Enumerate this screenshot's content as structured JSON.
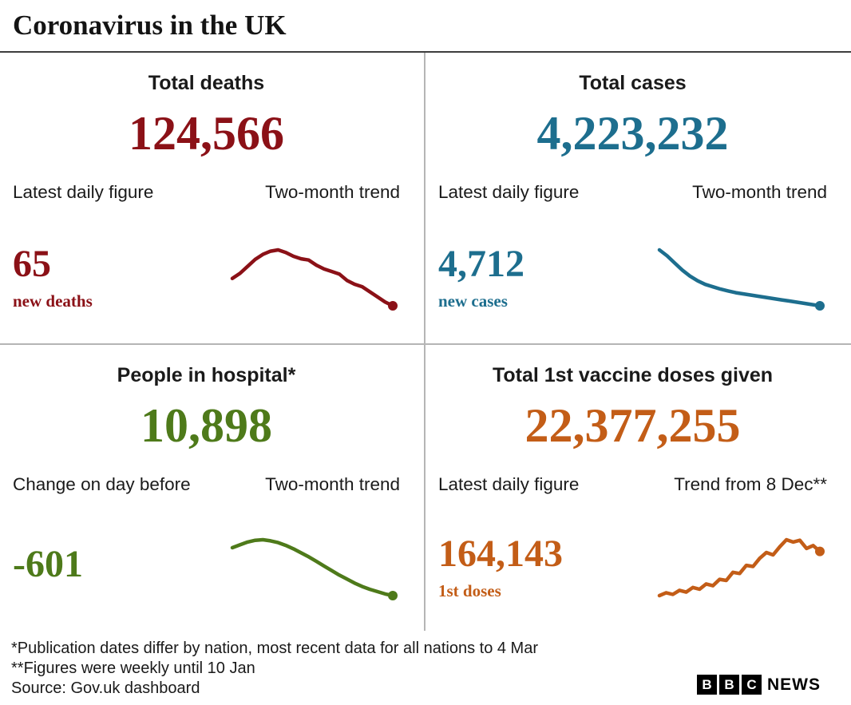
{
  "header": {
    "title": "Coronavirus in the UK"
  },
  "panels": [
    {
      "id": "deaths",
      "heading": "Total deaths",
      "big_number": "124,566",
      "left_label": "Latest daily figure",
      "right_label": "Two-month trend",
      "sub_number": "65",
      "sub_caption": "new deaths",
      "color": "#8b1117"
    },
    {
      "id": "cases",
      "heading": "Total cases",
      "big_number": "4,223,232",
      "left_label": "Latest daily figure",
      "right_label": "Two-month trend",
      "sub_number": "4,712",
      "sub_caption": "new cases",
      "color": "#1d6e8e"
    },
    {
      "id": "hospital",
      "heading": "People in hospital*",
      "big_number": "10,898",
      "left_label": "Change on day before",
      "right_label": "Two-month trend",
      "sub_number": "-601",
      "sub_caption": "",
      "color": "#4e7a1a"
    },
    {
      "id": "vaccine",
      "heading": "Total 1st vaccine doses given",
      "big_number": "22,377,255",
      "left_label": "Latest daily figure",
      "right_label": "Trend from 8 Dec**",
      "sub_number": "164,143",
      "sub_caption": "1st doses",
      "color": "#c35d17"
    }
  ],
  "footnotes": [
    "*Publication dates differ by nation, most recent data for all nations to 4 Mar",
    "**Figures were weekly until 10 Jan",
    "Source: Gov.uk dashboard"
  ],
  "logo": {
    "letters": [
      "B",
      "B",
      "C"
    ],
    "news": "NEWS"
  },
  "chart_data": [
    {
      "type": "line",
      "title": "Total deaths two-month trend",
      "color": "#8b1117",
      "endpoint_dot": true,
      "values": [
        55,
        63,
        74,
        85,
        93,
        98,
        100,
        96,
        90,
        86,
        84,
        76,
        70,
        66,
        62,
        52,
        46,
        42,
        34,
        26,
        18,
        12
      ]
    },
    {
      "type": "line",
      "title": "Total cases two-month trend",
      "color": "#1d6e8e",
      "endpoint_dot": true,
      "values": [
        100,
        90,
        78,
        66,
        56,
        48,
        42,
        38,
        34,
        31,
        28,
        26,
        24,
        22,
        20,
        18,
        16,
        14,
        12,
        10,
        8,
        6
      ]
    },
    {
      "type": "line",
      "title": "People in hospital two-month trend",
      "color": "#4e7a1a",
      "endpoint_dot": true,
      "values": [
        86,
        91,
        96,
        99,
        100,
        98,
        95,
        90,
        84,
        77,
        70,
        62,
        54,
        46,
        38,
        31,
        24,
        18,
        13,
        9,
        5,
        2
      ]
    },
    {
      "type": "line",
      "title": "1st vaccine doses trend from 8 Dec",
      "color": "#c35d17",
      "endpoint_dot": true,
      "values": [
        4,
        9,
        6,
        13,
        10,
        18,
        15,
        24,
        21,
        32,
        30,
        44,
        42,
        56,
        54,
        68,
        78,
        74,
        88,
        100,
        96,
        99,
        85,
        90,
        80
      ]
    }
  ]
}
